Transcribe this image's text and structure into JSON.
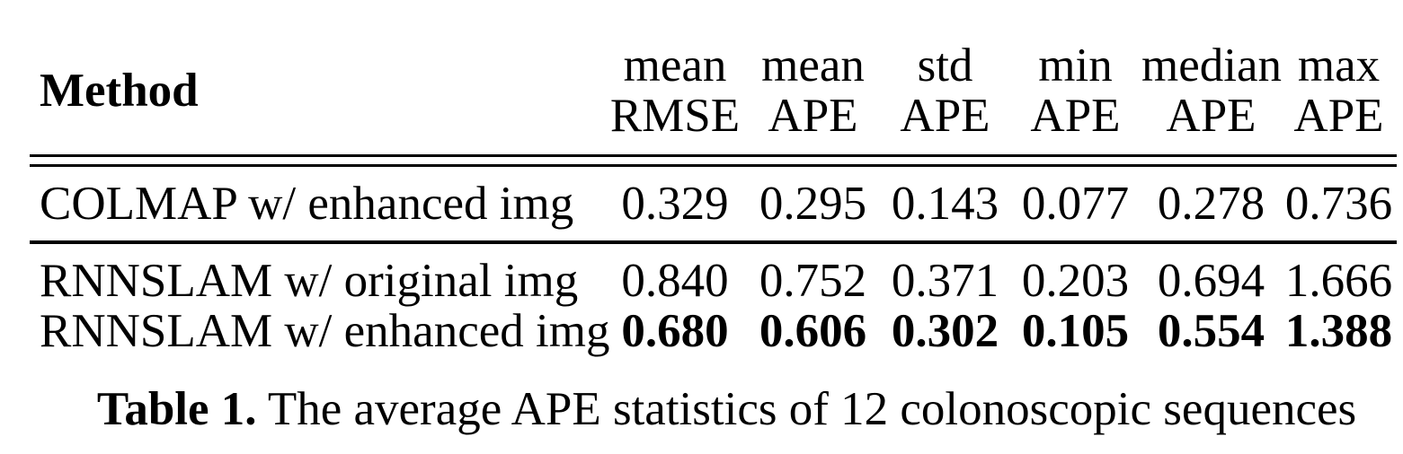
{
  "table": {
    "method_header": "Method",
    "columns": [
      {
        "line1": "mean",
        "line2": "RMSE"
      },
      {
        "line1": "mean",
        "line2": "APE"
      },
      {
        "line1": "std",
        "line2": "APE"
      },
      {
        "line1": "min",
        "line2": "APE"
      },
      {
        "line1": "median",
        "line2": "APE"
      },
      {
        "line1": "max",
        "line2": "APE"
      }
    ],
    "rows": [
      {
        "method": "COLMAP w/ enhanced img",
        "values": [
          "0.329",
          "0.295",
          "0.143",
          "0.077",
          "0.278",
          "0.736"
        ]
      },
      {
        "method": "RNNSLAM w/ original img",
        "values": [
          "0.840",
          "0.752",
          "0.371",
          "0.203",
          "0.694",
          "1.666"
        ]
      },
      {
        "method": "RNNSLAM w/ enhanced img",
        "values": [
          "0.680",
          "0.606",
          "0.302",
          "0.105",
          "0.554",
          "1.388"
        ]
      }
    ]
  },
  "caption": {
    "label": "Table 1.",
    "text": "The average APE statistics of 12 colonoscopic sequences"
  },
  "colors": {
    "text": "#000000",
    "background": "#ffffff",
    "rule": "#000000"
  }
}
